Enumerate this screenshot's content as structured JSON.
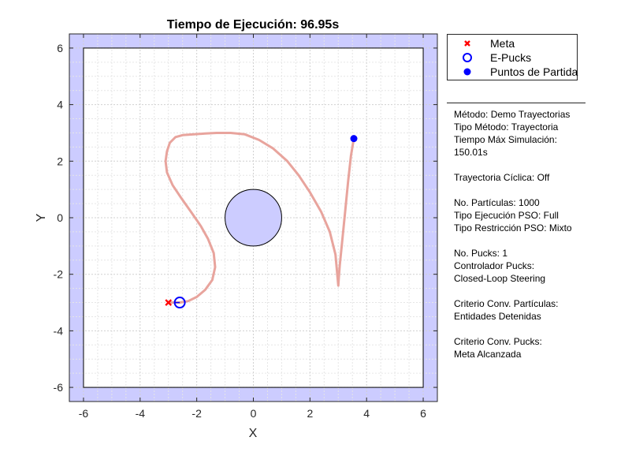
{
  "chart_data": {
    "type": "line",
    "title": "Tiempo de Ejecución: 96.95s",
    "xlabel": "X",
    "ylabel": "Y",
    "xlim": [
      -6.5,
      6.5
    ],
    "ylim": [
      -6.5,
      6.5
    ],
    "xticks": [
      -6,
      -4,
      -2,
      0,
      2,
      4,
      6
    ],
    "yticks": [
      -6,
      -4,
      -2,
      0,
      2,
      4,
      6
    ],
    "grid": true,
    "boundary": [
      -6,
      6
    ],
    "obstacle": {
      "type": "circle",
      "cx": 0,
      "cy": 0,
      "r": 1
    },
    "trajectory": {
      "x": [
        3.55,
        3.45,
        3.35,
        3.25,
        3.15,
        3.05,
        3.02,
        3.0,
        2.9,
        2.7,
        2.4,
        2.0,
        1.6,
        1.2,
        0.7,
        0.2,
        -0.3,
        -0.8,
        -1.3,
        -1.7,
        -2.1,
        -2.5,
        -2.75,
        -2.95,
        -3.05,
        -3.1,
        -3.05,
        -2.85,
        -2.55,
        -2.2,
        -1.85,
        -1.6,
        -1.4,
        -1.35,
        -1.45,
        -1.7,
        -2.0,
        -2.3,
        -2.6,
        -3.0
      ],
      "y": [
        2.8,
        2.2,
        1.3,
        0.3,
        -0.7,
        -1.7,
        -2.1,
        -2.4,
        -1.3,
        -0.5,
        0.2,
        0.9,
        1.5,
        2.0,
        2.45,
        2.75,
        2.95,
        3.0,
        3.0,
        2.98,
        2.95,
        2.92,
        2.85,
        2.65,
        2.35,
        2.0,
        1.6,
        1.15,
        0.7,
        0.2,
        -0.3,
        -0.75,
        -1.25,
        -1.75,
        -2.2,
        -2.55,
        -2.8,
        -2.95,
        -3.0,
        -3.0
      ]
    },
    "series": [
      {
        "name": "Meta",
        "x": [
          -3.0
        ],
        "y": [
          -3.0
        ],
        "color": "#ff0000",
        "marker": "x"
      },
      {
        "name": "E-Pucks",
        "x": [
          -2.6
        ],
        "y": [
          -3.0
        ],
        "color": "#0000ff",
        "marker": "open-circle"
      },
      {
        "name": "Puntos de Partida",
        "x": [
          3.55
        ],
        "y": [
          2.8
        ],
        "color": "#0000ff",
        "marker": "filled-circle"
      }
    ],
    "colors": {
      "trajectory": "#e8a49d",
      "fill": "#ccccff",
      "axes": "#262626"
    }
  },
  "info": [
    "Método: Demo Trayectorias",
    "Tipo Método: Trayectoria",
    "Tiempo Máx Simulación:",
    "150.01s",
    "",
    "Trayectoria Cíclica: Off",
    "",
    "No. Partículas: 1000",
    "Tipo Ejecución PSO: Full",
    "Tipo Restricción PSO: Mixto",
    "",
    "No. Pucks: 1",
    "Controlador Pucks:",
    "Closed-Loop Steering",
    "",
    "Criterio Conv. Partículas:",
    "Entidades Detenidas",
    "",
    "Criterio Conv. Pucks:",
    "Meta Alcanzada"
  ]
}
